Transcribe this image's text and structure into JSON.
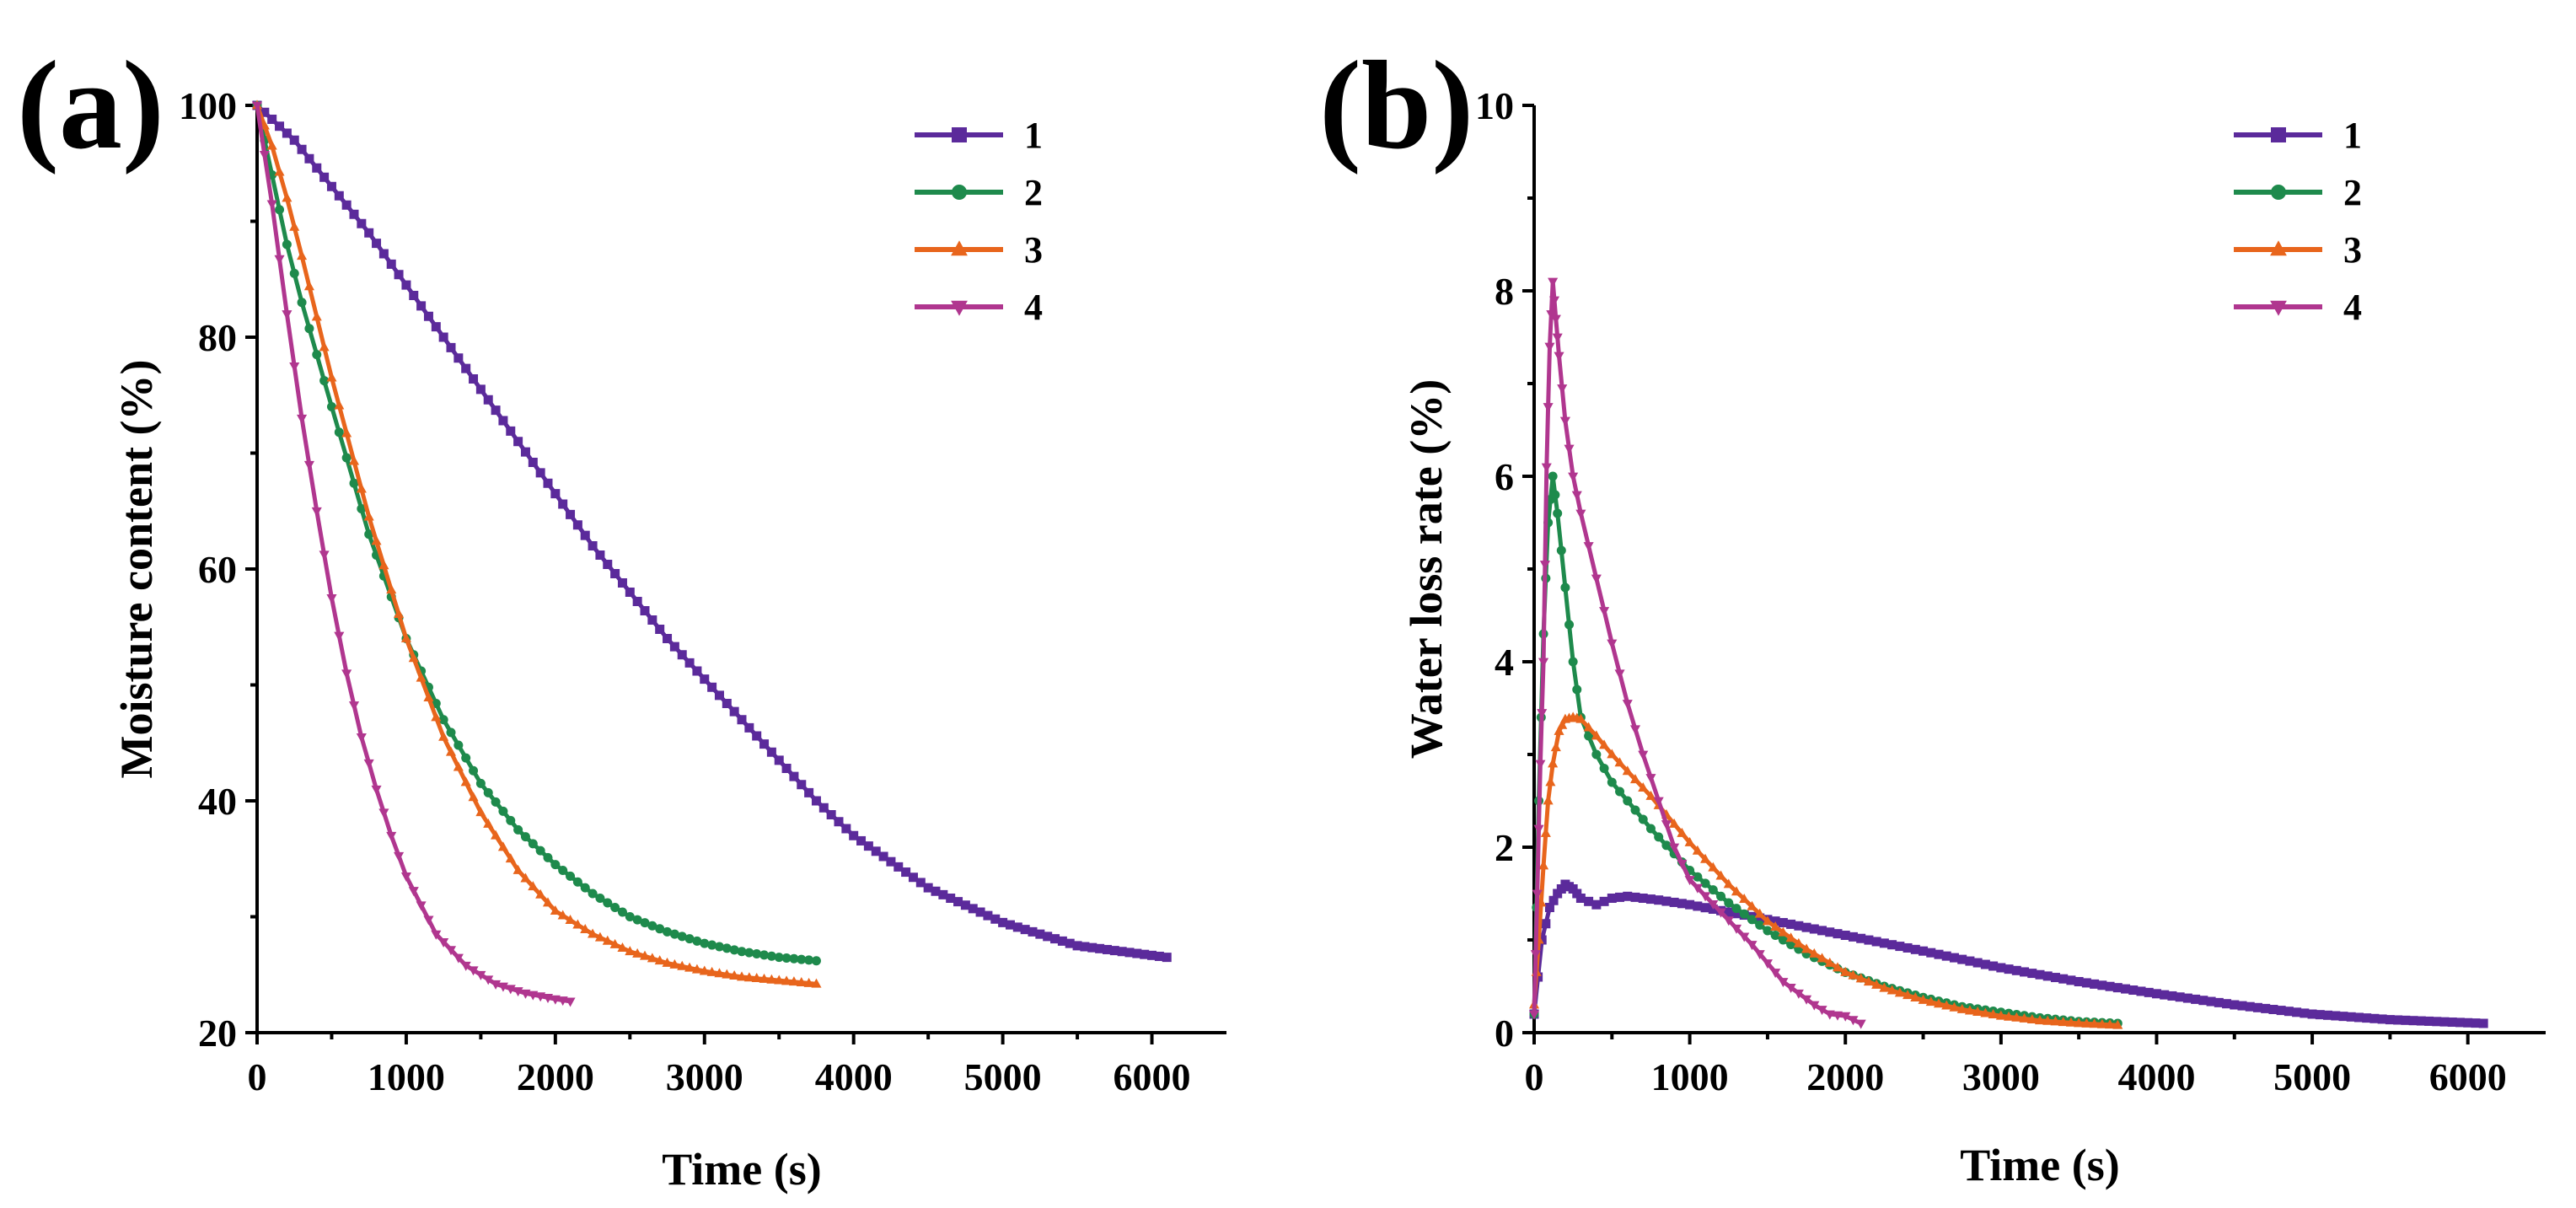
{
  "chart_data": [
    {
      "panel": "(a)",
      "type": "line",
      "xlabel": "Time (s)",
      "ylabel": "Moisture content (%)",
      "xlim": [
        0,
        6500
      ],
      "ylim": [
        20,
        100
      ],
      "xticks": [
        0,
        1000,
        2000,
        3000,
        4000,
        5000,
        6000
      ],
      "yticks": [
        20,
        40,
        60,
        80,
        100
      ],
      "legend_position": "top-right",
      "series": [
        {
          "name": "1",
          "color": "#5b2a9b",
          "marker": "square",
          "x": [
            0,
            250,
            500,
            750,
            1000,
            1250,
            1500,
            1750,
            2000,
            2250,
            2500,
            2750,
            3000,
            3250,
            3500,
            3750,
            4000,
            4500,
            5000,
            5500,
            6100
          ],
          "y": [
            100,
            97,
            93,
            89,
            84.5,
            80,
            75.5,
            71,
            66.5,
            62,
            58,
            54,
            50.5,
            47,
            43.5,
            40,
            37,
            32.5,
            29.5,
            27.5,
            26.5
          ]
        },
        {
          "name": "2",
          "color": "#1e8a4c",
          "marker": "circle",
          "x": [
            0,
            100,
            200,
            300,
            500,
            750,
            1000,
            1250,
            1500,
            1750,
            2000,
            2250,
            2500,
            2750,
            3000,
            3250,
            3500,
            3750
          ],
          "y": [
            100,
            94,
            88,
            83,
            74,
            63,
            54,
            47,
            41.5,
            37.5,
            34.5,
            32,
            30,
            28.7,
            27.7,
            27,
            26.5,
            26.2
          ]
        },
        {
          "name": "3",
          "color": "#e8651c",
          "marker": "triangle-up",
          "x": [
            0,
            100,
            200,
            300,
            500,
            750,
            1000,
            1250,
            1500,
            1750,
            2000,
            2250,
            2500,
            2750,
            3000,
            3250,
            3500,
            3750
          ],
          "y": [
            100,
            96.5,
            92,
            87,
            76.5,
            64.5,
            54,
            45.5,
            39,
            34,
            30.5,
            28.5,
            27,
            26,
            25.3,
            24.8,
            24.5,
            24.2
          ]
        },
        {
          "name": "4",
          "color": "#b0368f",
          "marker": "triangle-down",
          "x": [
            0,
            100,
            200,
            300,
            400,
            500,
            600,
            700,
            800,
            900,
            1000,
            1200,
            1400,
            1600,
            1800,
            2000,
            2100
          ],
          "y": [
            100,
            91.5,
            82,
            73,
            65,
            57.5,
            51,
            45.5,
            41,
            37,
            33.5,
            28.5,
            25.8,
            24.2,
            23.4,
            22.9,
            22.7
          ]
        }
      ]
    },
    {
      "panel": "(b)",
      "type": "line",
      "xlabel": "Time (s)",
      "ylabel": "Water loss rate (%)",
      "xlim": [
        0,
        6500
      ],
      "ylim": [
        0,
        10
      ],
      "xticks": [
        0,
        1000,
        2000,
        3000,
        4000,
        5000,
        6000
      ],
      "yticks": [
        0,
        2,
        4,
        6,
        8,
        10
      ],
      "legend_position": "top-right",
      "series": [
        {
          "name": "1",
          "color": "#5b2a9b",
          "marker": "square",
          "x": [
            0,
            50,
            100,
            150,
            200,
            250,
            300,
            400,
            500,
            600,
            800,
            1000,
            1500,
            2000,
            2500,
            3000,
            3500,
            4000,
            4500,
            5000,
            5500,
            6100
          ],
          "y": [
            0.2,
            1.0,
            1.35,
            1.5,
            1.6,
            1.55,
            1.45,
            1.38,
            1.45,
            1.47,
            1.43,
            1.38,
            1.22,
            1.05,
            0.88,
            0.7,
            0.55,
            0.42,
            0.3,
            0.2,
            0.14,
            0.1
          ]
        },
        {
          "name": "2",
          "color": "#1e8a4c",
          "marker": "circle",
          "x": [
            0,
            30,
            60,
            90,
            120,
            150,
            200,
            250,
            300,
            400,
            500,
            750,
            1000,
            1250,
            1500,
            1750,
            2000,
            2250,
            2500,
            2750,
            3000,
            3250,
            3500,
            3750
          ],
          "y": [
            0.2,
            2.5,
            4.3,
            5.5,
            6.0,
            5.6,
            4.8,
            4.0,
            3.4,
            3.0,
            2.7,
            2.2,
            1.75,
            1.4,
            1.1,
            0.85,
            0.65,
            0.5,
            0.38,
            0.28,
            0.22,
            0.16,
            0.12,
            0.1
          ]
        },
        {
          "name": "3",
          "color": "#e8651c",
          "marker": "triangle-up",
          "x": [
            0,
            30,
            60,
            90,
            120,
            160,
            200,
            250,
            300,
            400,
            500,
            750,
            1000,
            1250,
            1500,
            1750,
            2000,
            2250,
            2500,
            2750,
            3000,
            3250,
            3500,
            3750
          ],
          "y": [
            0.3,
            1.0,
            1.8,
            2.5,
            2.9,
            3.25,
            3.38,
            3.4,
            3.38,
            3.2,
            3.0,
            2.55,
            2.05,
            1.6,
            1.2,
            0.9,
            0.65,
            0.48,
            0.35,
            0.25,
            0.18,
            0.13,
            0.1,
            0.08
          ]
        },
        {
          "name": "4",
          "color": "#b0368f",
          "marker": "triangle-down",
          "x": [
            0,
            20,
            40,
            60,
            80,
            100,
            120,
            140,
            160,
            200,
            250,
            300,
            400,
            500,
            600,
            700,
            800,
            900,
            1000,
            1200,
            1400,
            1600,
            1800,
            1900,
            2000,
            2100
          ],
          "y": [
            0.2,
            1.5,
            2.9,
            4.0,
            6.1,
            7.4,
            8.1,
            7.7,
            7.3,
            6.6,
            6.0,
            5.6,
            4.9,
            4.2,
            3.55,
            3.0,
            2.5,
            2.0,
            1.65,
            1.3,
            0.95,
            0.55,
            0.3,
            0.2,
            0.18,
            0.1
          ]
        }
      ]
    }
  ]
}
